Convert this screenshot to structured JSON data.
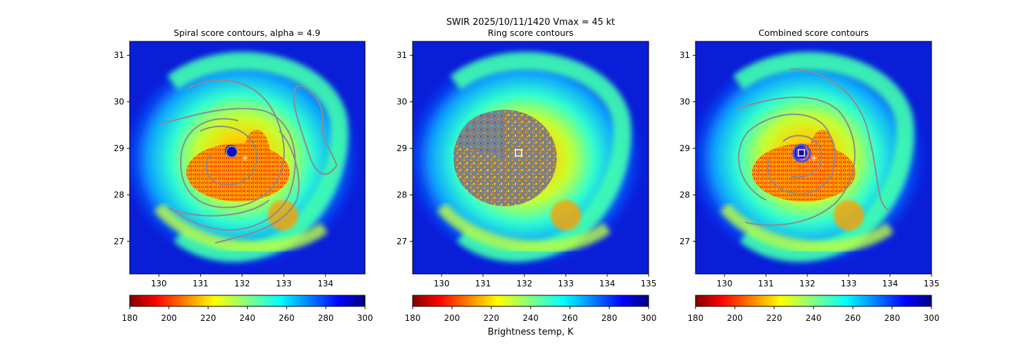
{
  "figure": {
    "suptitle_line1": "SWIR  2025/10/11/1420    Vmax = 45 kt",
    "colorbar_label": "Brightness temp, K"
  },
  "chart_data": [
    {
      "type": "heatmap",
      "title": "Spiral score contours, alpha =  4.9",
      "xlim": [
        129.3,
        134.95
      ],
      "ylim": [
        26.3,
        31.3
      ],
      "xticks": [
        130,
        131,
        132,
        133,
        134
      ],
      "yticks": [
        27,
        28,
        29,
        30,
        31
      ],
      "center_marker": {
        "x": 132.15,
        "y": 28.82,
        "symbol": "+"
      },
      "overlay": "spiral score contours (gray)",
      "colorbar": {
        "cmap": "jet_r",
        "range": [
          180,
          300
        ],
        "ticks": [
          180,
          200,
          220,
          240,
          260,
          280,
          300
        ]
      }
    },
    {
      "type": "heatmap",
      "title": "Ring score contours",
      "xlim": [
        129.3,
        135.0
      ],
      "ylim": [
        26.3,
        31.3
      ],
      "xticks": [
        130,
        131,
        132,
        133,
        134,
        135
      ],
      "yticks": [
        27,
        28,
        29,
        30,
        31
      ],
      "center_marker": {
        "x": 131.85,
        "y": 28.9,
        "symbol": "square"
      },
      "overlay": "ring score region (gray disk, radius ~1.75 deg)",
      "colorbar": {
        "cmap": "jet_r",
        "range": [
          180,
          300
        ],
        "ticks": [
          180,
          200,
          220,
          240,
          260,
          280,
          300
        ]
      }
    },
    {
      "type": "heatmap",
      "title": "Combined score contours",
      "xlim": [
        129.3,
        135.0
      ],
      "ylim": [
        26.3,
        31.3
      ],
      "xticks": [
        130,
        131,
        132,
        133,
        134,
        135
      ],
      "yticks": [
        27,
        28,
        29,
        30,
        31
      ],
      "center_marker": {
        "x": 131.85,
        "y": 28.9,
        "symbol": "square"
      },
      "overlay": "combined score contours (gray) with blue ring at center",
      "colorbar": {
        "cmap": "jet_r",
        "range": [
          180,
          300
        ],
        "ticks": [
          180,
          200,
          220,
          240,
          260,
          280,
          300
        ]
      }
    }
  ]
}
